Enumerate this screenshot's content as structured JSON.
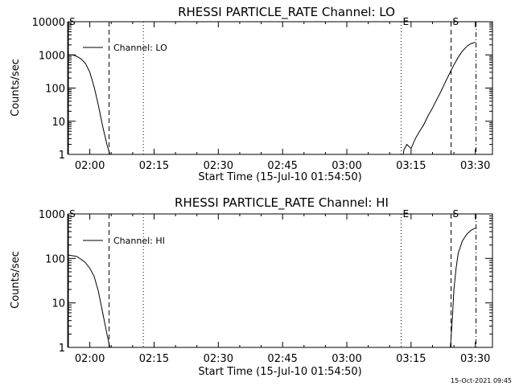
{
  "footer": {
    "timestamp": "15-Oct-2021 09:45"
  },
  "chart_data": [
    {
      "type": "line",
      "title": "RHESSI PARTICLE_RATE Channel: LO",
      "xlabel": "Start Time (15-Jul-10 01:54:50)",
      "ylabel": "Counts/sec",
      "yscale": "log",
      "ylim": [
        1,
        10000
      ],
      "xlim_minutes_of_day": [
        115,
        214
      ],
      "xtick_labels": [
        "02:00",
        "02:15",
        "02:30",
        "02:45",
        "03:00",
        "03:15",
        "03:30"
      ],
      "ytick_labels": [
        "10000",
        "1000",
        "100",
        "10",
        "1"
      ],
      "legend": "Channel: LO",
      "markers": [
        {
          "label": "S",
          "time": "01:54:50",
          "style": "solid"
        },
        {
          "label": "",
          "time": "02:04:30",
          "style": "dashed"
        },
        {
          "label": "",
          "time": "02:12:30",
          "style": "dotted"
        },
        {
          "label": "E",
          "time": "03:12:40",
          "style": "dotted"
        },
        {
          "label": "S",
          "time": "03:24:20",
          "style": "dashed"
        },
        {
          "label": "",
          "time": "03:30:10",
          "style": "dashdot"
        }
      ],
      "series": [
        {
          "segments": [
            {
              "time": [
                "01:54:50",
                "01:56:00",
                "01:57:00",
                "01:58:00",
                "01:59:00",
                "02:00:00",
                "02:01:00",
                "02:02:00",
                "02:03:00",
                "02:04:00",
                "02:04:40"
              ],
              "values": [
                1000,
                1000,
                900,
                750,
                550,
                300,
                110,
                30,
                7,
                2,
                1
              ]
            },
            {
              "time": [
                "03:13:10",
                "03:13:20",
                "03:14:00",
                "03:15:00",
                "03:16:00",
                "03:17:00",
                "03:18:00",
                "03:19:00",
                "03:20:00",
                "03:21:00",
                "03:22:00",
                "03:23:00",
                "03:24:00",
                "03:25:00",
                "03:26:00",
                "03:27:00",
                "03:28:00",
                "03:29:00",
                "03:30:00"
              ],
              "values": [
                1,
                1.4,
                2,
                1.5,
                3,
                5,
                8,
                15,
                25,
                45,
                80,
                150,
                280,
                500,
                850,
                1300,
                1800,
                2200,
                2400
              ]
            }
          ]
        }
      ]
    },
    {
      "type": "line",
      "title": "RHESSI PARTICLE_RATE Channel: HI",
      "xlabel": "Start Time (15-Jul-10 01:54:50)",
      "ylabel": "Counts/sec",
      "yscale": "log",
      "ylim": [
        1,
        1000
      ],
      "xlim_minutes_of_day": [
        115,
        214
      ],
      "xtick_labels": [
        "02:00",
        "02:15",
        "02:30",
        "02:45",
        "03:00",
        "03:15",
        "03:30"
      ],
      "ytick_labels": [
        "1000",
        "100",
        "10",
        "1"
      ],
      "legend": "Channel: HI",
      "markers": [
        {
          "label": "S",
          "time": "01:54:50",
          "style": "solid"
        },
        {
          "label": "",
          "time": "02:04:30",
          "style": "dashed"
        },
        {
          "label": "",
          "time": "02:12:30",
          "style": "dotted"
        },
        {
          "label": "E",
          "time": "03:12:40",
          "style": "dotted"
        },
        {
          "label": "S",
          "time": "03:24:20",
          "style": "dashed"
        },
        {
          "label": "",
          "time": "03:30:10",
          "style": "dashdot"
        }
      ],
      "series": [
        {
          "segments": [
            {
              "time": [
                "01:54:50",
                "01:56:00",
                "01:57:00",
                "01:58:00",
                "01:59:00",
                "02:00:00",
                "02:01:00",
                "02:02:00",
                "02:03:00",
                "02:04:00",
                "02:04:40"
              ],
              "values": [
                120,
                115,
                110,
                95,
                80,
                60,
                40,
                18,
                6,
                2,
                1
              ]
            },
            {
              "time": [
                "03:24:10",
                "03:24:40",
                "03:25:00",
                "03:25:30",
                "03:26:00",
                "03:27:00",
                "03:28:00",
                "03:29:00",
                "03:30:00"
              ],
              "values": [
                1,
                5,
                20,
                60,
                130,
                250,
                350,
                430,
                480
              ]
            }
          ]
        }
      ]
    }
  ]
}
